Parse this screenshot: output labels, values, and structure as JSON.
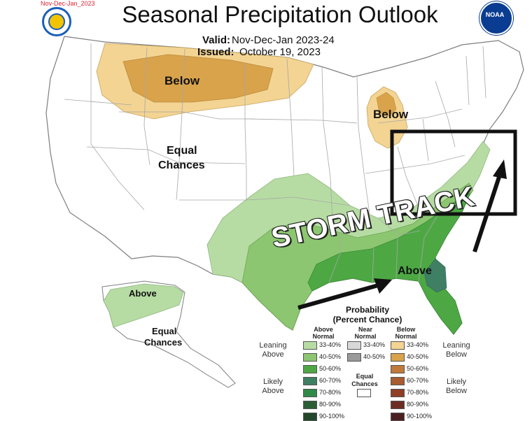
{
  "header": {
    "small_label": "Nov-Dec-Jan_2023",
    "title": "Seasonal Precipitation Outlook",
    "valid_label": "Valid:",
    "valid_value": "Nov-Dec-Jan 2023-24",
    "issued_label": "Issued:",
    "issued_value": "October 19, 2023",
    "left_logo_icon": "doc-seal-icon",
    "right_logo_icon": "noaa-logo-icon",
    "noaa_text": "NOAA"
  },
  "map": {
    "labels": {
      "below_north": "Below",
      "below_michigan": "Below",
      "equal_west_1": "Equal",
      "equal_west_2": "Chances",
      "storm_track": "STORM TRACK",
      "above_southeast": "Above",
      "alaska_above": "Above",
      "alaska_equal_1": "Equal",
      "alaska_equal_2": "Chances"
    },
    "colors": {
      "below_light": "#f3d493",
      "below_medium": "#d9a34b",
      "above_light": "#b6dca3",
      "above_medium": "#8cc670",
      "above_strong": "#4da844",
      "above_darker": "#3f7f64",
      "state_lines": "#9a9a9a",
      "highlight_box": "#111111"
    }
  },
  "legend": {
    "title_1": "Probability",
    "title_2": "(Percent Chance)",
    "above_header": "Above Normal",
    "near_header": "Near Normal",
    "below_header": "Below Normal",
    "equal_label_1": "Equal",
    "equal_label_2": "Chances",
    "leaning_above_1": "Leaning",
    "leaning_above_2": "Above",
    "likely_above_1": "Likely",
    "likely_above_2": "Above",
    "leaning_below_1": "Leaning",
    "leaning_below_2": "Below",
    "likely_below_1": "Likely",
    "likely_below_2": "Below",
    "above_ranges": [
      "33-40%",
      "40-50%",
      "50-60%",
      "60-70%",
      "70-80%",
      "80-90%",
      "90-100%"
    ],
    "near_ranges": [
      "33-40%",
      "40-50%"
    ],
    "below_ranges": [
      "33-40%",
      "40-50%",
      "50-60%",
      "60-70%",
      "70-80%",
      "80-90%",
      "90-100%"
    ],
    "above_colors": [
      "#b6dca3",
      "#8cc670",
      "#4da844",
      "#3f7f64",
      "#2f8a47",
      "#2b5e35",
      "#23472b"
    ],
    "near_colors": [
      "#d8d8d8",
      "#9a9a9a"
    ],
    "below_colors": [
      "#f3d493",
      "#d9a34b",
      "#c07a3c",
      "#a95b31",
      "#8f3f28",
      "#6d2d22",
      "#4a2020"
    ]
  }
}
